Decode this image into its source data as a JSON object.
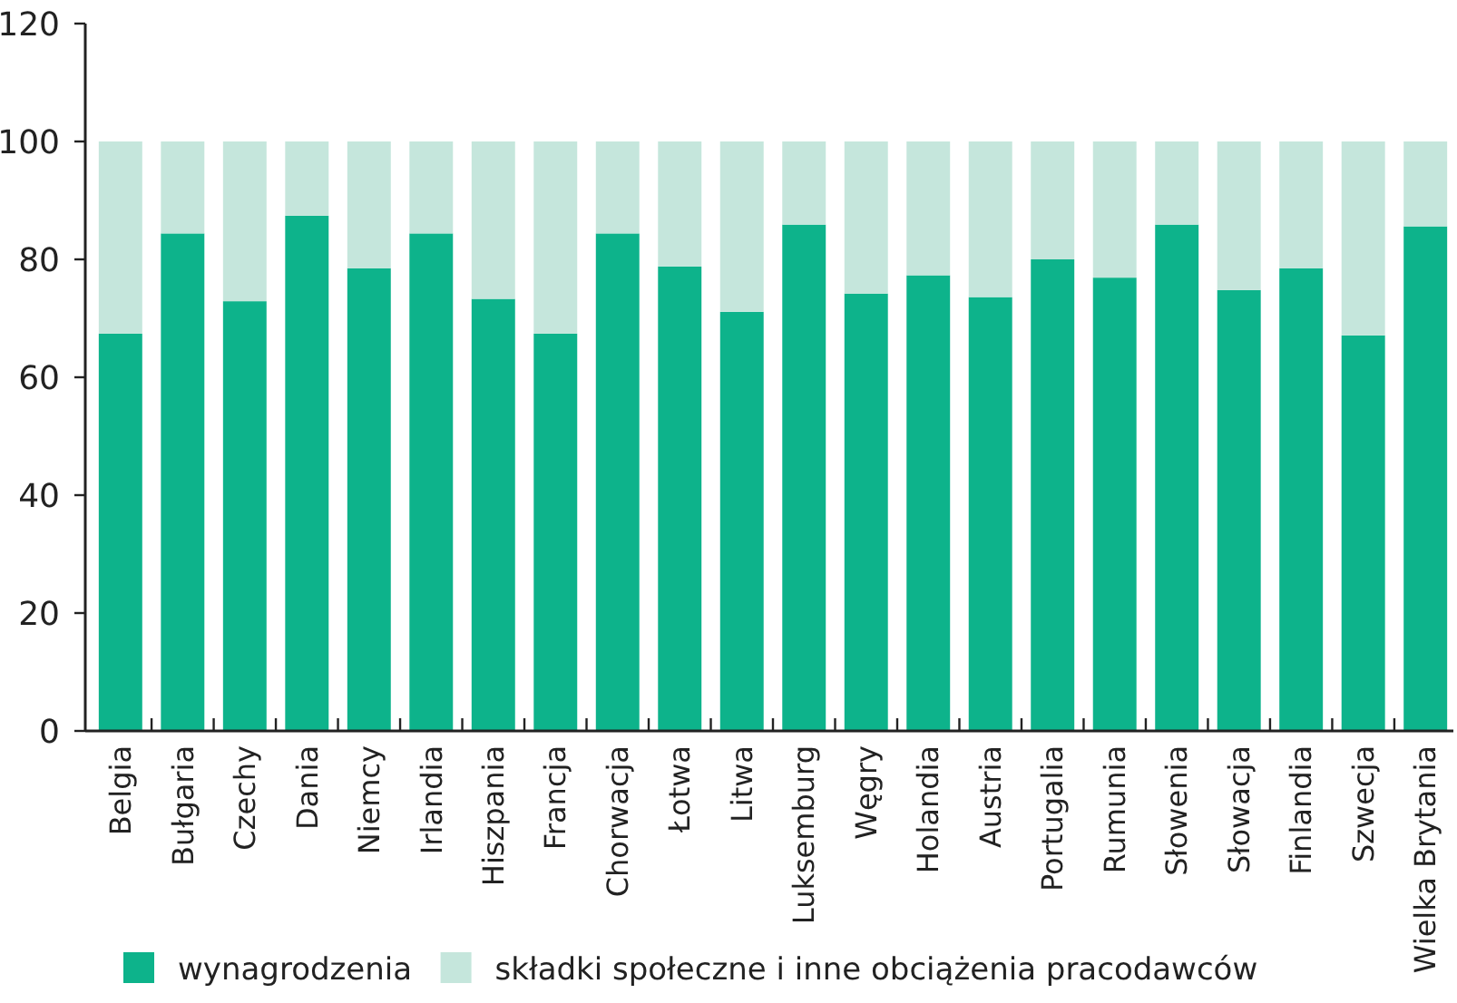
{
  "chart_data": {
    "type": "bar",
    "stacked": true,
    "categories": [
      "Belgia",
      "Bułgaria",
      "Czechy",
      "Dania",
      "Niemcy",
      "Irlandia",
      "Hiszpania",
      "Francja",
      "Chorwacja",
      "Łotwa",
      "Litwa",
      "Luksemburg",
      "Węgry",
      "Holandia",
      "Austria",
      "Portugalia",
      "Rumunia",
      "Słowenia",
      "Słowacja",
      "Finlandia",
      "Szwecja",
      "Wielka Brytania"
    ],
    "series": [
      {
        "name": "wynagrodzenia",
        "color": "#0db38b",
        "values": [
          67.4,
          84.4,
          72.9,
          87.4,
          78.5,
          84.4,
          73.3,
          67.4,
          84.4,
          78.8,
          71.1,
          85.9,
          74.2,
          77.3,
          73.6,
          80.0,
          76.9,
          85.9,
          74.8,
          78.5,
          67.1,
          85.6
        ]
      },
      {
        "name": "składki społeczne i inne obciążenia pracodawców",
        "color": "#c5e6dc",
        "values": [
          32.6,
          15.6,
          27.1,
          12.6,
          21.5,
          15.6,
          26.7,
          32.6,
          15.6,
          21.2,
          28.9,
          14.1,
          25.8,
          22.7,
          26.4,
          20.0,
          23.1,
          14.1,
          25.2,
          21.5,
          32.9,
          14.4
        ]
      }
    ],
    "ylim": [
      0,
      120
    ],
    "yticks": [
      0,
      20,
      40,
      60,
      80,
      100,
      120
    ],
    "grid": false,
    "legend": "bottom"
  }
}
